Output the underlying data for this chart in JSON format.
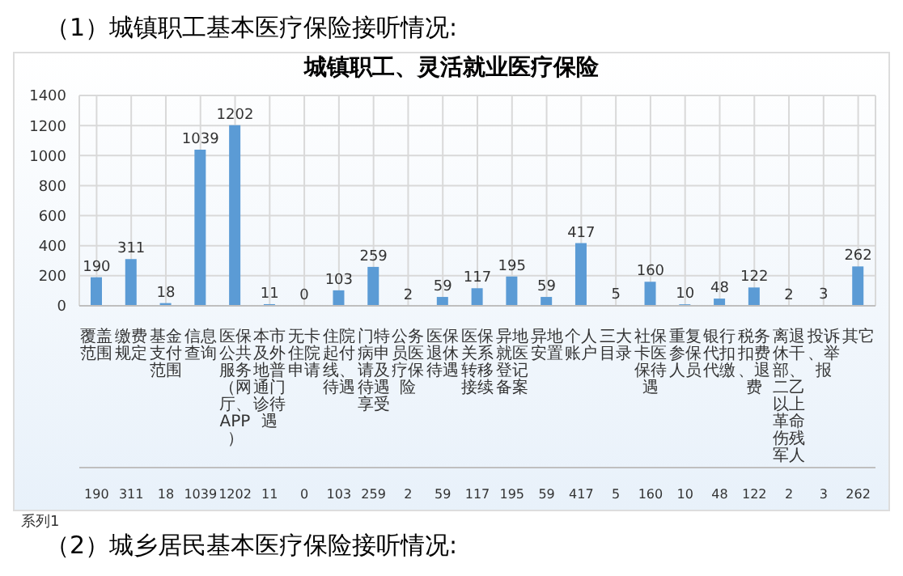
{
  "chart_data": {
    "type": "bar",
    "title": "城镇职工、灵活就业医疗保险",
    "annotations": [
      "（1）城镇职工基本医疗保险接听情况:",
      "（2）城乡居民基本医疗保险接听情况:"
    ],
    "categories": [
      "覆盖范围",
      "缴费规定",
      "基金支付范围",
      "信息查询",
      "医保公共服务（网厅、APP）",
      "本市及外地普通门诊待遇",
      "无卡住院申请",
      "住院起付线、待遇",
      "门特病申请及待遇享受",
      "公务员医疗保险",
      "医保退休待遇",
      "医保关系转移接续",
      "异地就医登记备案",
      "异地安置",
      "个人账户",
      "三大目录",
      "社保卡医保待遇",
      "重复参保人员",
      "银行代扣代缴",
      "税务扣费、退费",
      "离退休干部、二乙以上革命伤残军人",
      "投诉、举报",
      "其它"
    ],
    "series": [
      {
        "name": "系列1",
        "color": "#5b9bd5",
        "values": [
          190,
          311,
          18,
          1039,
          1202,
          11,
          0,
          103,
          259,
          2,
          59,
          117,
          195,
          59,
          417,
          5,
          160,
          10,
          48,
          122,
          2,
          3,
          262
        ],
        "value_labels": [
          "190",
          "311",
          "18",
          "1039",
          "1202",
          "11",
          "0",
          "103",
          "259",
          "2",
          "59",
          "117",
          "195",
          "59",
          "417",
          "5",
          "160",
          "10",
          "48",
          "122",
          "2",
          "3",
          "262"
        ]
      }
    ],
    "ylim": [
      0,
      1400
    ],
    "yticks": [
      0,
      200,
      400,
      600,
      800,
      1000,
      1200,
      1400
    ],
    "grid": true,
    "data_labels": true
  }
}
